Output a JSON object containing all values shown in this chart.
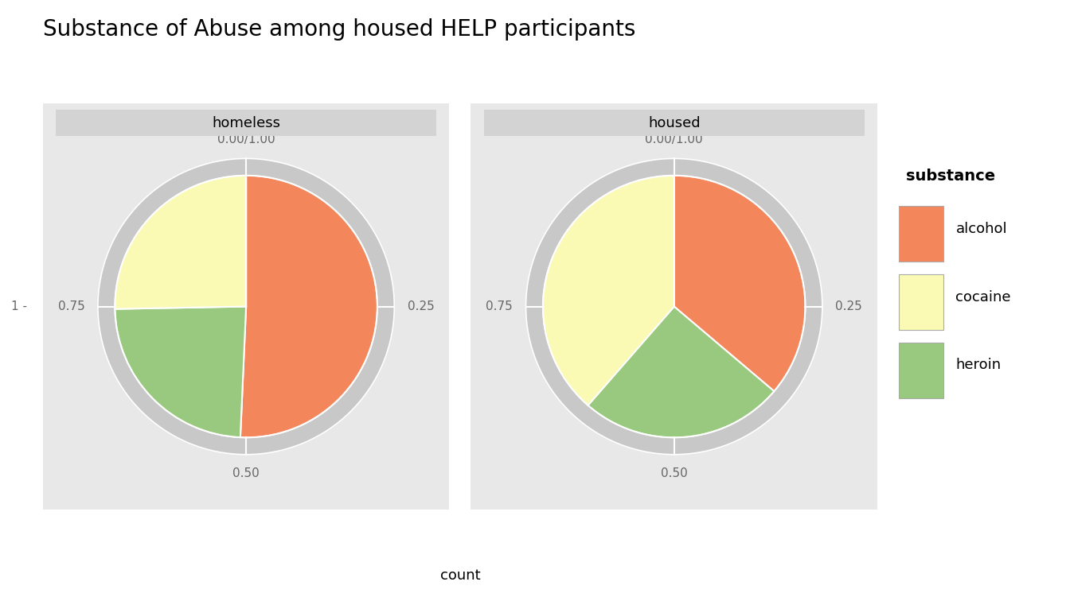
{
  "title": "Substance of Abuse among housed HELP participants",
  "facets": [
    "homeless",
    "housed"
  ],
  "substances": [
    "alcohol",
    "cocaine",
    "heroin"
  ],
  "colors": {
    "alcohol": "#F4865C",
    "cocaine": "#FAFAB4",
    "heroin": "#99C97E"
  },
  "proportions": {
    "homeless": {
      "alcohol": 0.507,
      "cocaine": 0.253,
      "heroin": 0.24
    },
    "housed": {
      "alcohol": 0.362,
      "cocaine": 0.386,
      "heroin": 0.252
    }
  },
  "panel_bg": "#E8E8E8",
  "strip_bg": "#D3D3D3",
  "outer_ring_color": "#C8C8C8",
  "ring_white": "#E8E8E8",
  "circle_line_color": "white",
  "xlabel": "count",
  "legend_title": "substance",
  "title_fontsize": 20,
  "label_fontsize": 11,
  "strip_fontsize": 13,
  "legend_fontsize": 13,
  "radial_tick_color": "#666666"
}
